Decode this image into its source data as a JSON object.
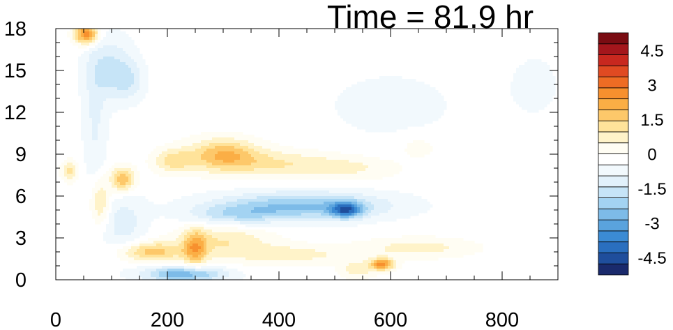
{
  "chart_data": {
    "type": "heatmap",
    "title": "Time = 81.9 hr",
    "xlabel": "",
    "ylabel": "",
    "xlim": [
      0,
      900
    ],
    "ylim": [
      0,
      18
    ],
    "x_ticks": [
      0,
      200,
      400,
      600,
      800
    ],
    "y_ticks": [
      0,
      3,
      6,
      9,
      12,
      15,
      18
    ],
    "colorbar": {
      "levels": [
        -5.25,
        -4.75,
        -4.25,
        -3.75,
        -3.25,
        -2.75,
        -2.25,
        -1.75,
        -1.25,
        -0.75,
        -0.25,
        0.25,
        0.75,
        1.25,
        1.75,
        2.25,
        2.75,
        3.25,
        3.75,
        4.25,
        4.75,
        5.25
      ],
      "tick_values": [
        -4.5,
        -3,
        -1.5,
        0,
        1.5,
        3,
        4.5
      ],
      "tick_labels": [
        "-4.5",
        "-3",
        "-1.5",
        "0",
        "1.5",
        "3",
        "4.5"
      ],
      "colors": [
        "#1a2a6c",
        "#1f4e9c",
        "#2a6fbf",
        "#3b8bd4",
        "#5aa3dd",
        "#7dbbe8",
        "#a3d3f2",
        "#c6e4f7",
        "#e2f1fb",
        "#f2f9fd",
        "#ffffff",
        "#fffdf3",
        "#fff3c9",
        "#ffe39a",
        "#fdc86a",
        "#fbae45",
        "#f7902e",
        "#ee6c24",
        "#e04a22",
        "#c8281f",
        "#a4161c",
        "#7a0c12"
      ]
    },
    "features": [
      {
        "x": 55,
        "y": 17.6,
        "sx": 15,
        "sy": 0.5,
        "v": 3.3
      },
      {
        "x": 95,
        "y": 15.2,
        "sx": 30,
        "sy": 1.6,
        "v": -1.3
      },
      {
        "x": 130,
        "y": 14.3,
        "sx": 20,
        "sy": 1.0,
        "v": -1.0
      },
      {
        "x": 120,
        "y": 7.2,
        "sx": 15,
        "sy": 0.6,
        "v": 2.3
      },
      {
        "x": 80,
        "y": 5.5,
        "sx": 12,
        "sy": 1.2,
        "v": 1.5
      },
      {
        "x": 25,
        "y": 7.8,
        "sx": 10,
        "sy": 0.5,
        "v": 1.4
      },
      {
        "x": 210,
        "y": 8.5,
        "sx": 25,
        "sy": 0.6,
        "v": 1.4
      },
      {
        "x": 300,
        "y": 9.0,
        "sx": 45,
        "sy": 0.8,
        "v": 2.1
      },
      {
        "x": 400,
        "y": 8.3,
        "sx": 80,
        "sy": 0.7,
        "v": 1.2
      },
      {
        "x": 540,
        "y": 8.0,
        "sx": 60,
        "sy": 0.6,
        "v": 0.7
      },
      {
        "x": 440,
        "y": 5.3,
        "sx": 110,
        "sy": 0.7,
        "v": -2.3
      },
      {
        "x": 520,
        "y": 5.0,
        "sx": 20,
        "sy": 0.4,
        "v": -3.0
      },
      {
        "x": 320,
        "y": 4.6,
        "sx": 60,
        "sy": 0.5,
        "v": -1.2
      },
      {
        "x": 170,
        "y": 2.0,
        "sx": 40,
        "sy": 0.5,
        "v": 2.0
      },
      {
        "x": 250,
        "y": 2.2,
        "sx": 15,
        "sy": 1.0,
        "v": 2.0
      },
      {
        "x": 300,
        "y": 2.8,
        "sx": 60,
        "sy": 0.8,
        "v": 1.2
      },
      {
        "x": 420,
        "y": 1.8,
        "sx": 80,
        "sy": 0.5,
        "v": 1.0
      },
      {
        "x": 650,
        "y": 2.3,
        "sx": 70,
        "sy": 0.5,
        "v": 1.0
      },
      {
        "x": 230,
        "y": 0.4,
        "sx": 50,
        "sy": 0.4,
        "v": -2.8
      },
      {
        "x": 585,
        "y": 1.1,
        "sx": 15,
        "sy": 0.3,
        "v": 3.0
      },
      {
        "x": 540,
        "y": 0.7,
        "sx": 20,
        "sy": 0.4,
        "v": 1.2
      },
      {
        "x": 120,
        "y": 4.0,
        "sx": 30,
        "sy": 1.5,
        "v": -1.0
      },
      {
        "x": 600,
        "y": 12.5,
        "sx": 120,
        "sy": 2.5,
        "v": -0.35
      },
      {
        "x": 860,
        "y": 14.0,
        "sx": 40,
        "sy": 2.0,
        "v": -0.35
      },
      {
        "x": 650,
        "y": 9.5,
        "sx": 25,
        "sy": 0.6,
        "v": 0.6
      },
      {
        "x": 70,
        "y": 11.0,
        "sx": 15,
        "sy": 3.0,
        "v": -0.8
      }
    ]
  }
}
